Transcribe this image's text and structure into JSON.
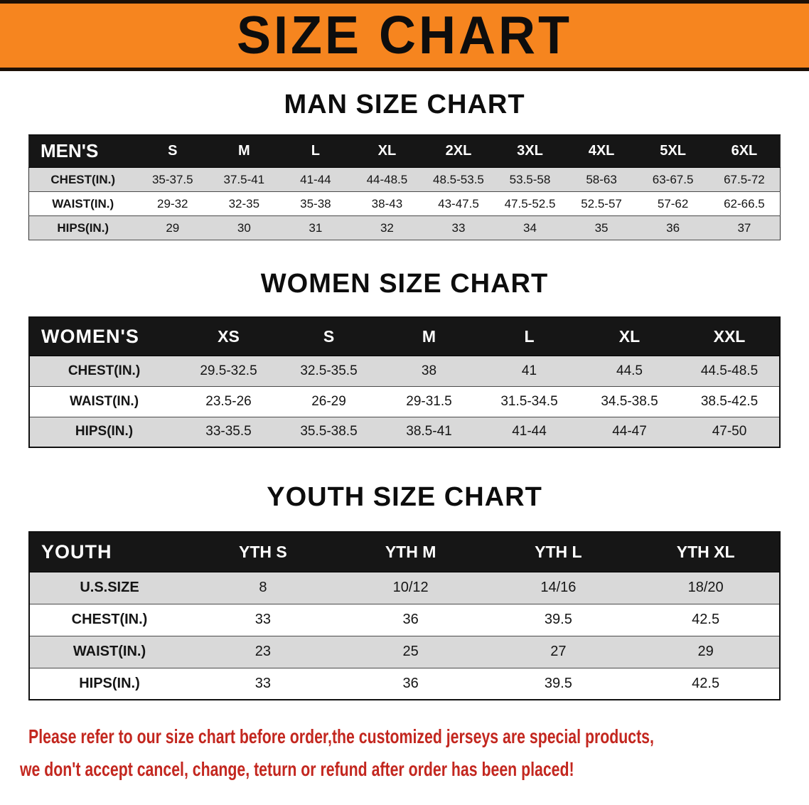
{
  "colors": {
    "orange": "#f6851f",
    "ink": "#161616",
    "shade": "#d9d9d9",
    "red": "#c3271f"
  },
  "banner": {
    "title": "SIZE CHART"
  },
  "sections": [
    {
      "id": "men",
      "heading": "MAN SIZE CHART",
      "table": {
        "header": [
          "MEN'S",
          "S",
          "M",
          "L",
          "XL",
          "2XL",
          "3XL",
          "4XL",
          "5XL",
          "6XL"
        ],
        "rows": [
          {
            "label": "CHEST(IN.)",
            "values": [
              "35-37.5",
              "37.5-41",
              "41-44",
              "44-48.5",
              "48.5-53.5",
              "53.5-58",
              "58-63",
              "63-67.5",
              "67.5-72"
            ]
          },
          {
            "label": "WAIST(IN.)",
            "values": [
              "29-32",
              "32-35",
              "35-38",
              "38-43",
              "43-47.5",
              "47.5-52.5",
              "52.5-57",
              "57-62",
              "62-66.5"
            ]
          },
          {
            "label": "HIPS(IN.)",
            "values": [
              "29",
              "30",
              "31",
              "32",
              "33",
              "34",
              "35",
              "36",
              "37"
            ]
          }
        ]
      }
    },
    {
      "id": "women",
      "heading": "WOMEN SIZE CHART",
      "table": {
        "header": [
          "WOMEN'S",
          "XS",
          "S",
          "M",
          "L",
          "XL",
          "XXL"
        ],
        "rows": [
          {
            "label": "CHEST(IN.)",
            "values": [
              "29.5-32.5",
              "32.5-35.5",
              "38",
              "41",
              "44.5",
              "44.5-48.5"
            ]
          },
          {
            "label": "WAIST(IN.)",
            "values": [
              "23.5-26",
              "26-29",
              "29-31.5",
              "31.5-34.5",
              "34.5-38.5",
              "38.5-42.5"
            ]
          },
          {
            "label": "HIPS(IN.)",
            "values": [
              "33-35.5",
              "35.5-38.5",
              "38.5-41",
              "41-44",
              "44-47",
              "47-50"
            ]
          }
        ]
      }
    },
    {
      "id": "youth",
      "heading": "YOUTH SIZE CHART",
      "table": {
        "header": [
          "YOUTH",
          "YTH S",
          "YTH M",
          "YTH L",
          "YTH XL"
        ],
        "rows": [
          {
            "label": "U.S.SIZE",
            "values": [
              "8",
              "10/12",
              "14/16",
              "18/20"
            ]
          },
          {
            "label": "CHEST(IN.)",
            "values": [
              "33",
              "36",
              "39.5",
              "42.5"
            ]
          },
          {
            "label": "WAIST(IN.)",
            "values": [
              "23",
              "25",
              "27",
              "29"
            ]
          },
          {
            "label": "HIPS(IN.)",
            "values": [
              "33",
              "36",
              "39.5",
              "42.5"
            ]
          }
        ]
      }
    }
  ],
  "footer": {
    "line1": "Please refer to our size chart before order,the customized jerseys are special products,",
    "line2": "we don't accept cancel, change, teturn or refund after order has been placed!"
  }
}
